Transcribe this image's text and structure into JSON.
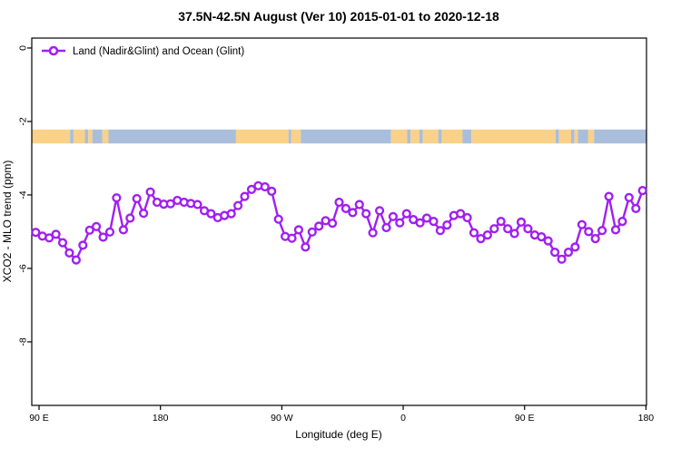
{
  "title": "37.5N-42.5N August (Ver 10)   2015-01-01 to 2020-12-18",
  "legend": {
    "label": "Land (Nadir&Glint) and Ocean (Glint)",
    "position": "top-left"
  },
  "colors": {
    "line": "#A020F0",
    "marker_fill": "#ffffff",
    "land_band": "#FAD189",
    "ocean_band": "#A9BEDB",
    "axis": "#000000",
    "background": "#ffffff"
  },
  "chart_data": {
    "type": "line",
    "title": "37.5N-42.5N August (Ver 10)   2015-01-01 to 2020-12-18",
    "xlabel": "Longitude (deg E)",
    "ylabel": "XCO2 - MLO trend (ppm)",
    "xlim": [
      84.6,
      540.4
    ],
    "ylim": [
      -9.73,
      0.27
    ],
    "grid": false,
    "legend_position": "top-left inside",
    "x_ticks": [
      {
        "value": 90,
        "label": "90 E"
      },
      {
        "value": 180,
        "label": "180"
      },
      {
        "value": 270,
        "label": "90 W"
      },
      {
        "value": 360,
        "label": "0"
      },
      {
        "value": 450,
        "label": "90 E"
      },
      {
        "value": 540,
        "label": "180"
      }
    ],
    "y_ticks": [
      {
        "value": 0,
        "label": "0"
      },
      {
        "value": -2,
        "label": "-2"
      },
      {
        "value": -4,
        "label": "-4"
      },
      {
        "value": -6,
        "label": "-6"
      },
      {
        "value": -8,
        "label": "-8"
      }
    ],
    "series": [
      {
        "name": "Land (Nadir&Glint) and Ocean (Glint)",
        "marker": "open-circle",
        "x": [
          87.5,
          92.5,
          97.5,
          102.5,
          107.5,
          112.5,
          117.5,
          122.5,
          127.5,
          132.5,
          137.5,
          142.5,
          147.5,
          152.5,
          157.5,
          162.5,
          167.5,
          172.5,
          177.5,
          182.5,
          187.5,
          192.5,
          197.5,
          202.5,
          207.5,
          212.5,
          217.5,
          222.5,
          227.5,
          232.5,
          237.5,
          242.5,
          247.5,
          252.5,
          257.5,
          262.5,
          267.5,
          272.5,
          277.5,
          282.5,
          287.5,
          292.5,
          297.5,
          302.5,
          307.5,
          312.5,
          317.5,
          322.5,
          327.5,
          332.5,
          337.5,
          342.5,
          347.5,
          352.5,
          357.5,
          362.5,
          367.5,
          372.5,
          377.5,
          382.5,
          387.5,
          392.5,
          397.5,
          402.5,
          407.5,
          412.5,
          417.5,
          422.5,
          427.5,
          432.5,
          437.5,
          442.5,
          447.5,
          452.5,
          457.5,
          462.5,
          467.5,
          472.5,
          477.5,
          482.5,
          487.5,
          492.5,
          497.5,
          502.5,
          507.5,
          512.5,
          517.5,
          522.5,
          527.5,
          532.5,
          537.5
        ],
        "y": [
          -5.02,
          -5.12,
          -5.17,
          -5.07,
          -5.3,
          -5.58,
          -5.77,
          -5.37,
          -4.96,
          -4.86,
          -5.15,
          -5.01,
          -4.08,
          -4.95,
          -4.63,
          -4.1,
          -4.5,
          -3.92,
          -4.2,
          -4.25,
          -4.24,
          -4.15,
          -4.2,
          -4.23,
          -4.26,
          -4.43,
          -4.51,
          -4.62,
          -4.56,
          -4.51,
          -4.29,
          -4.04,
          -3.85,
          -3.75,
          -3.78,
          -3.9,
          -4.66,
          -5.13,
          -5.18,
          -4.95,
          -5.42,
          -5.01,
          -4.85,
          -4.7,
          -4.77,
          -4.2,
          -4.37,
          -4.48,
          -4.26,
          -4.51,
          -5.03,
          -4.43,
          -4.89,
          -4.59,
          -4.76,
          -4.51,
          -4.67,
          -4.76,
          -4.63,
          -4.72,
          -4.97,
          -4.82,
          -4.56,
          -4.51,
          -4.62,
          -5.03,
          -5.19,
          -5.09,
          -4.92,
          -4.72,
          -4.92,
          -5.05,
          -4.74,
          -4.92,
          -5.09,
          -5.14,
          -5.25,
          -5.56,
          -5.75,
          -5.56,
          -5.42,
          -4.81,
          -5.0,
          -5.19,
          -4.97,
          -4.04,
          -4.95,
          -4.72,
          -4.07,
          -4.37,
          -3.88
        ]
      }
    ],
    "map_band": {
      "description": "world land/ocean strip at 37.5N-42.5N",
      "y_top": -2.22,
      "y_bottom": -2.6,
      "segments": [
        {
          "from": 84.6,
          "to": 113,
          "type": "land"
        },
        {
          "from": 113,
          "to": 115.5,
          "type": "ocean"
        },
        {
          "from": 115.5,
          "to": 124,
          "type": "land"
        },
        {
          "from": 124,
          "to": 126.5,
          "type": "ocean"
        },
        {
          "from": 126.5,
          "to": 129.5,
          "type": "land"
        },
        {
          "from": 129.5,
          "to": 137,
          "type": "ocean"
        },
        {
          "from": 137,
          "to": 141.5,
          "type": "land"
        },
        {
          "from": 141.5,
          "to": 236,
          "type": "ocean"
        },
        {
          "from": 236,
          "to": 275,
          "type": "land"
        },
        {
          "from": 275,
          "to": 277,
          "type": "ocean"
        },
        {
          "from": 277,
          "to": 284,
          "type": "land"
        },
        {
          "from": 284,
          "to": 351,
          "type": "ocean"
        },
        {
          "from": 351,
          "to": 363,
          "type": "land"
        },
        {
          "from": 363,
          "to": 365.5,
          "type": "ocean"
        },
        {
          "from": 365.5,
          "to": 372,
          "type": "land"
        },
        {
          "from": 372,
          "to": 374.5,
          "type": "ocean"
        },
        {
          "from": 374.5,
          "to": 386,
          "type": "land"
        },
        {
          "from": 386,
          "to": 388.5,
          "type": "ocean"
        },
        {
          "from": 388.5,
          "to": 404,
          "type": "land"
        },
        {
          "from": 404,
          "to": 410.5,
          "type": "ocean"
        },
        {
          "from": 410.5,
          "to": 473,
          "type": "land"
        },
        {
          "from": 473,
          "to": 475.5,
          "type": "ocean"
        },
        {
          "from": 475.5,
          "to": 484.5,
          "type": "land"
        },
        {
          "from": 484.5,
          "to": 487,
          "type": "ocean"
        },
        {
          "from": 487,
          "to": 489.5,
          "type": "land"
        },
        {
          "from": 489.5,
          "to": 497,
          "type": "ocean"
        },
        {
          "from": 497,
          "to": 501.5,
          "type": "land"
        },
        {
          "from": 501.5,
          "to": 540.4,
          "type": "ocean"
        }
      ]
    }
  }
}
